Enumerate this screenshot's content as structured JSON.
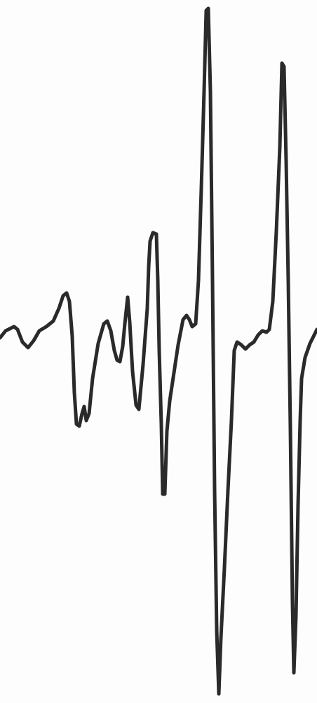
{
  "drawing": {
    "kind": "waveform-line-drawing",
    "stroke_color": "#2a2a2a",
    "background_color": "#fdfdfd"
  }
}
